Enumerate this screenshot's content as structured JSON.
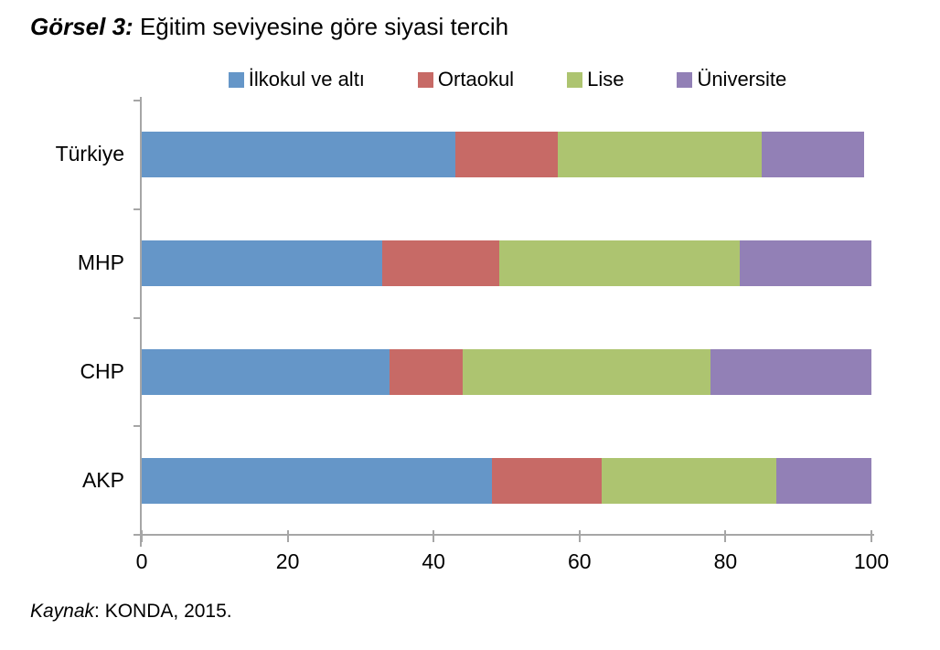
{
  "header": {
    "title_prefix": "Görsel 3:",
    "title_rest": " Eğitim seviyesine göre siyasi tercih"
  },
  "footer": {
    "kaynak_label": "Kaynak",
    "rest": ": KONDA, 2015."
  },
  "colors": {
    "axis": "#A6A6A6",
    "text": "#000000"
  },
  "chart_data": {
    "type": "bar",
    "orientation": "horizontal",
    "stacked": true,
    "title": "Görsel 3: Eğitim seviyesine göre siyasi tercih",
    "categories": [
      "Türkiye",
      "MHP",
      "CHP",
      "AKP"
    ],
    "series": [
      {
        "name": "İlkokul ve altı",
        "color": "#6596C8",
        "values": [
          43,
          33,
          34,
          48
        ]
      },
      {
        "name": "Ortaokul",
        "color": "#C76A66",
        "values": [
          14,
          16,
          10,
          15
        ]
      },
      {
        "name": "Lise",
        "color": "#ADC470",
        "values": [
          28,
          33,
          34,
          24
        ]
      },
      {
        "name": "Üniversite",
        "color": "#9280B6",
        "values": [
          14,
          18,
          22,
          13
        ]
      }
    ],
    "xlim": [
      0,
      100
    ],
    "x_ticks": [
      0,
      20,
      40,
      60,
      80,
      100
    ],
    "legend_position": "top",
    "grid": false,
    "source": "Kaynak: KONDA, 2015."
  }
}
